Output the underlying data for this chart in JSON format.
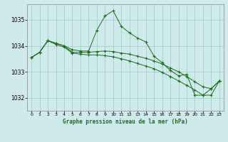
{
  "title": "Graphe pression niveau de la mer (hPa)",
  "background_color": "#ceeaea",
  "grid_color": "#9ec8c8",
  "line_color": "#1a6e1a",
  "marker_color": "#1a6e1a",
  "xlim": [
    -0.5,
    23.5
  ],
  "ylim": [
    1031.5,
    1035.6
  ],
  "xticks": [
    0,
    1,
    2,
    3,
    4,
    5,
    6,
    7,
    8,
    9,
    10,
    11,
    12,
    13,
    14,
    15,
    16,
    17,
    18,
    19,
    20,
    21,
    22,
    23
  ],
  "yticks": [
    1032,
    1033,
    1034,
    1035
  ],
  "series": [
    {
      "x": [
        0,
        1,
        2,
        3,
        4,
        5,
        6,
        7,
        8,
        9,
        10,
        11,
        12,
        13,
        14,
        15,
        16,
        17,
        18,
        19,
        20,
        21,
        22,
        23
      ],
      "y": [
        1033.55,
        1033.75,
        1034.2,
        1034.1,
        1034.0,
        1033.85,
        1033.8,
        1033.8,
        1034.6,
        1035.15,
        1035.35,
        1034.75,
        1034.5,
        1034.3,
        1034.15,
        1033.6,
        1033.35,
        1033.05,
        1032.85,
        1032.9,
        1032.1,
        1032.1,
        1032.35,
        1032.65
      ]
    },
    {
      "x": [
        0,
        1,
        2,
        3,
        4,
        5,
        6,
        7,
        8,
        9,
        10,
        11,
        12,
        13,
        14,
        15,
        16,
        17,
        18,
        19,
        20,
        21,
        22,
        23
      ],
      "y": [
        1033.55,
        1033.75,
        1034.2,
        1034.1,
        1034.0,
        1033.75,
        1033.75,
        1033.75,
        1033.78,
        1033.8,
        1033.78,
        1033.72,
        1033.68,
        1033.6,
        1033.52,
        1033.42,
        1033.3,
        1033.15,
        1033.0,
        1032.82,
        1032.62,
        1032.42,
        1032.35,
        1032.65
      ]
    },
    {
      "x": [
        0,
        1,
        2,
        3,
        4,
        5,
        6,
        7,
        8,
        9,
        10,
        11,
        12,
        13,
        14,
        15,
        16,
        17,
        18,
        19,
        20,
        21,
        22,
        23
      ],
      "y": [
        1033.55,
        1033.75,
        1034.2,
        1034.05,
        1033.95,
        1033.72,
        1033.68,
        1033.65,
        1033.65,
        1033.62,
        1033.58,
        1033.5,
        1033.42,
        1033.32,
        1033.22,
        1033.12,
        1032.98,
        1032.82,
        1032.65,
        1032.48,
        1032.3,
        1032.1,
        1032.1,
        1032.65
      ]
    }
  ]
}
